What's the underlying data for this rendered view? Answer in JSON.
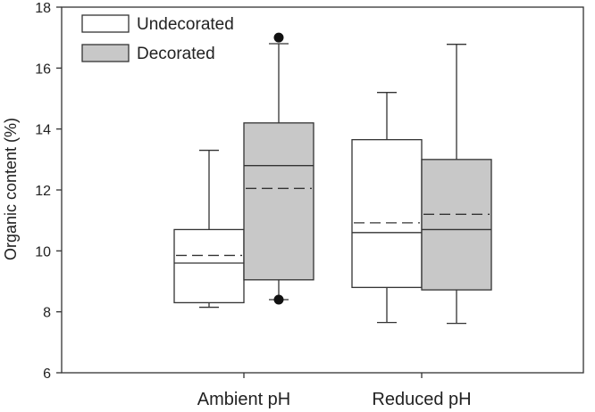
{
  "chart_data": {
    "type": "box",
    "title": "",
    "xlabel": "",
    "ylabel": "Organic content (%)",
    "ylim": [
      6,
      18
    ],
    "yticks": [
      6,
      8,
      10,
      12,
      14,
      16,
      18
    ],
    "categories": [
      "Ambient pH",
      "Reduced pH"
    ],
    "grid": false,
    "legend_position": "top-left",
    "series": [
      {
        "name": "Undecorated",
        "color": "#ffffff",
        "boxes": [
          {
            "category": "Ambient pH",
            "whisker_low": 8.15,
            "q1": 8.3,
            "median": 9.6,
            "mean": 9.85,
            "q3": 10.7,
            "whisker_high": 13.3,
            "outliers": []
          },
          {
            "category": "Reduced pH",
            "whisker_low": 7.65,
            "q1": 8.8,
            "median": 10.6,
            "mean": 10.92,
            "q3": 13.65,
            "whisker_high": 15.2,
            "outliers": []
          }
        ]
      },
      {
        "name": "Decorated",
        "color": "#c8c8c8",
        "boxes": [
          {
            "category": "Ambient pH",
            "whisker_low": 8.4,
            "q1": 9.05,
            "median": 12.8,
            "mean": 12.05,
            "q3": 14.2,
            "whisker_high": 16.8,
            "outliers": [
              8.4,
              17.0
            ]
          },
          {
            "category": "Reduced pH",
            "whisker_low": 7.62,
            "q1": 8.72,
            "median": 10.7,
            "mean": 11.2,
            "q3": 13.0,
            "whisker_high": 16.78,
            "outliers": []
          }
        ]
      }
    ]
  }
}
